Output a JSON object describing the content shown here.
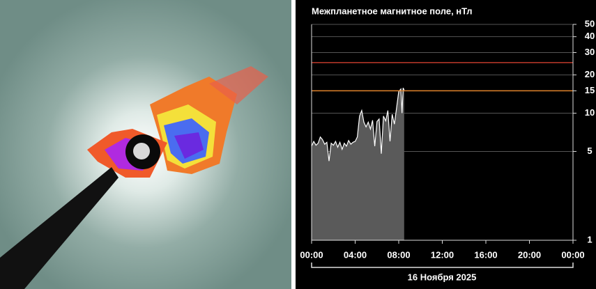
{
  "chart_data": {
    "type": "area",
    "title": "Межпланетное магнитное поле, нТл",
    "xlabel": "16 Ноября 2025",
    "x": [
      0,
      0.2,
      0.4,
      0.6,
      0.8,
      1.0,
      1.2,
      1.4,
      1.6,
      1.8,
      2.0,
      2.2,
      2.4,
      2.6,
      2.8,
      3.0,
      3.2,
      3.4,
      3.6,
      3.8,
      4.0,
      4.2,
      4.4,
      4.6,
      4.8,
      5.0,
      5.2,
      5.4,
      5.6,
      5.8,
      6.0,
      6.2,
      6.4,
      6.6,
      6.8,
      7.0,
      7.2,
      7.4,
      7.6,
      7.8,
      8.0,
      8.2,
      8.3,
      8.4,
      8.5
    ],
    "series": [
      {
        "color": "#ffffff",
        "fill": "#5a5a5a",
        "values": [
          5.5,
          6,
          5.6,
          5.8,
          6.5,
          6.2,
          5.7,
          5.9,
          4.2,
          5.8,
          5.6,
          6,
          5.4,
          5.9,
          5.2,
          5.8,
          5.5,
          6.1,
          5.7,
          5.9,
          6,
          6.5,
          9.5,
          10.5,
          8.5,
          7.8,
          8.5,
          7.5,
          8.8,
          5.5,
          8.6,
          9,
          4.8,
          9.5,
          8.7,
          10.5,
          6,
          9.8,
          8.2,
          11,
          14.8,
          15.5,
          10,
          15.8,
          15.2
        ]
      }
    ],
    "xlim": [
      0,
      24
    ],
    "xticks": [
      {
        "value": 0,
        "label": "00:00"
      },
      {
        "value": 4,
        "label": "04:00"
      },
      {
        "value": 8,
        "label": "08:00"
      },
      {
        "value": 12,
        "label": "12:00"
      },
      {
        "value": 16,
        "label": "16:00"
      },
      {
        "value": 20,
        "label": "20:00"
      },
      {
        "value": 24,
        "label": "00:00"
      }
    ],
    "ylim": [
      1,
      50
    ],
    "yticks": [
      1,
      5,
      10,
      15,
      20,
      30,
      40,
      50
    ],
    "log_scale": true,
    "grid": true,
    "reference_lines": [
      {
        "value": 25,
        "color": "#c0392b"
      },
      {
        "value": 15,
        "color": "#e0822a"
      }
    ]
  }
}
